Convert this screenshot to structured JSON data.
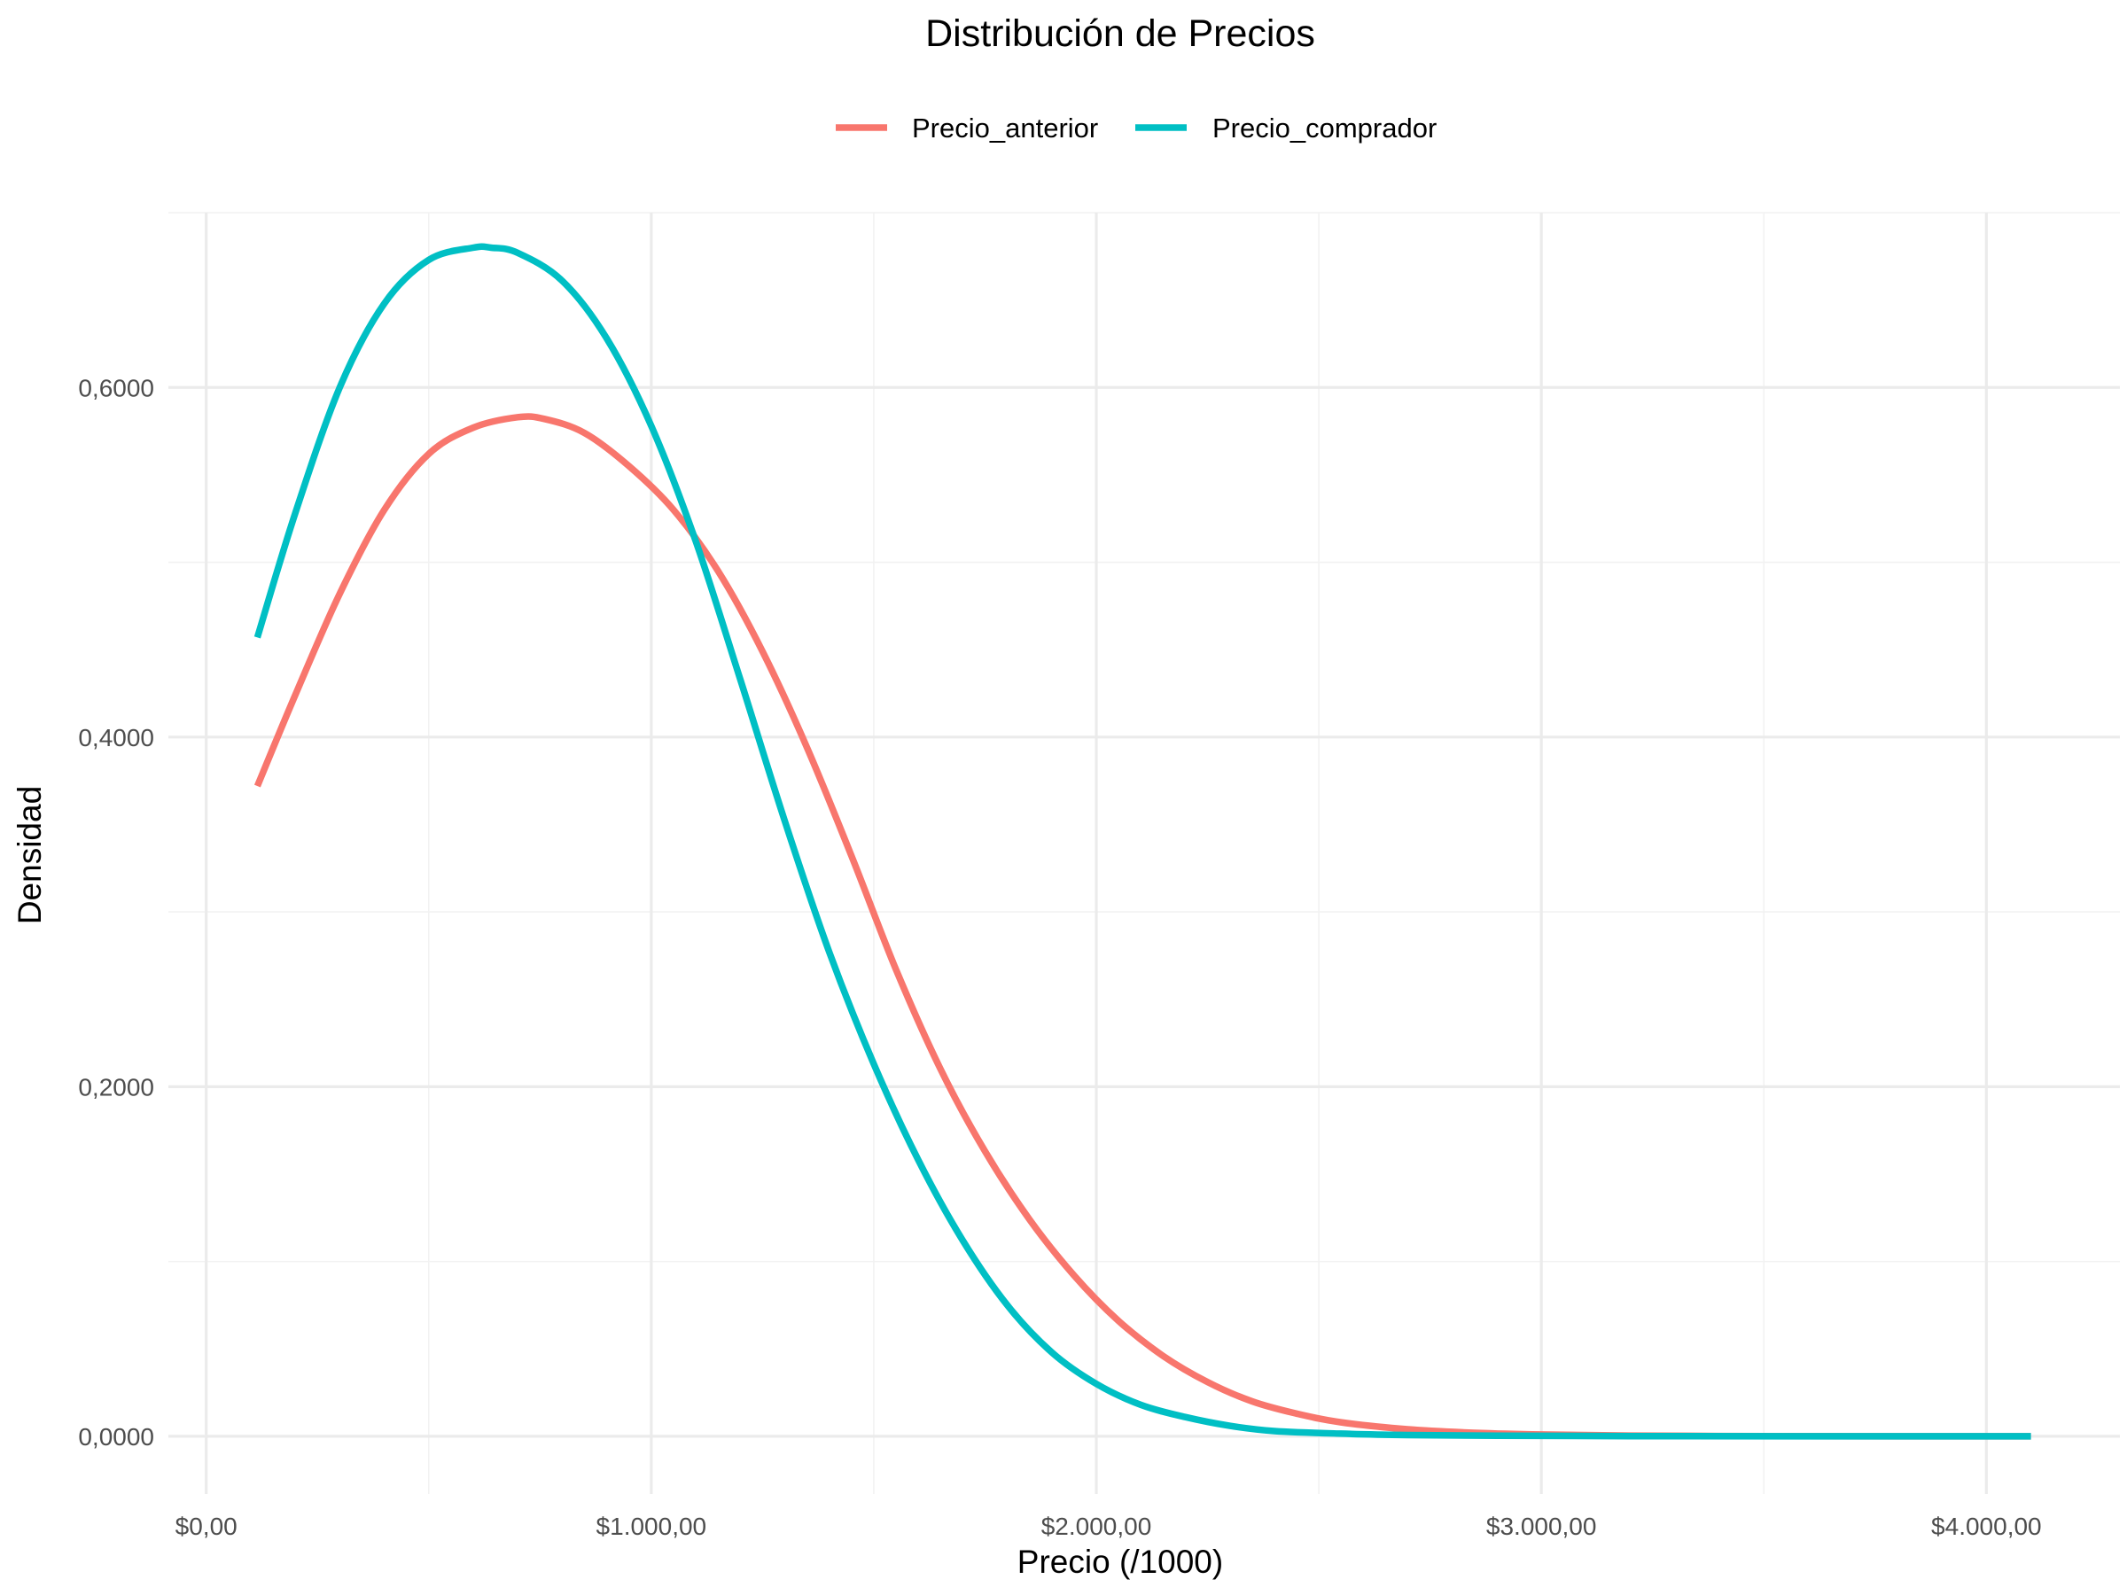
{
  "chart_data": {
    "type": "line",
    "title": "Distribución de Precios",
    "xlabel": "Precio (/1000)",
    "ylabel": "Densidad",
    "xlim": [
      -85,
      4300
    ],
    "ylim": [
      -0.033,
      0.7
    ],
    "x_ticks": [
      {
        "value": 0,
        "label": "$0,00"
      },
      {
        "value": 1000,
        "label": "$1.000,00"
      },
      {
        "value": 2000,
        "label": "$2.000,00"
      },
      {
        "value": 3000,
        "label": "$3.000,00"
      },
      {
        "value": 4000,
        "label": "$4.000,00"
      }
    ],
    "x_minor": [
      500,
      1500,
      2500,
      3500
    ],
    "y_ticks": [
      {
        "value": 0,
        "label": "0,0000"
      },
      {
        "value": 0.2,
        "label": "0,2000"
      },
      {
        "value": 0.4,
        "label": "0,4000"
      },
      {
        "value": 0.6,
        "label": "0,6000"
      }
    ],
    "y_minor": [
      0.1,
      0.3,
      0.5,
      0.7
    ],
    "grid": true,
    "legend_position": "top",
    "series": [
      {
        "name": "Precio_anterior",
        "color": "#F8766D",
        "points": [
          [
            115,
            0.372
          ],
          [
            200,
            0.424
          ],
          [
            300,
            0.482
          ],
          [
            400,
            0.53
          ],
          [
            500,
            0.562
          ],
          [
            600,
            0.577
          ],
          [
            700,
            0.583
          ],
          [
            760,
            0.582
          ],
          [
            850,
            0.574
          ],
          [
            950,
            0.555
          ],
          [
            1050,
            0.53
          ],
          [
            1150,
            0.495
          ],
          [
            1250,
            0.449
          ],
          [
            1350,
            0.394
          ],
          [
            1450,
            0.332
          ],
          [
            1550,
            0.267
          ],
          [
            1650,
            0.21
          ],
          [
            1750,
            0.163
          ],
          [
            1850,
            0.124
          ],
          [
            1950,
            0.092
          ],
          [
            2050,
            0.066
          ],
          [
            2150,
            0.046
          ],
          [
            2250,
            0.031
          ],
          [
            2350,
            0.02
          ],
          [
            2450,
            0.013
          ],
          [
            2550,
            0.008
          ],
          [
            2700,
            0.004
          ],
          [
            2850,
            0.002
          ],
          [
            3000,
            0.001
          ],
          [
            3200,
            0.0004
          ],
          [
            3500,
            0.0001
          ],
          [
            3800,
            0.0
          ],
          [
            4100,
            0.0
          ]
        ]
      },
      {
        "name": "Precio_comprador",
        "color": "#00BFC4",
        "points": [
          [
            115,
            0.457
          ],
          [
            200,
            0.528
          ],
          [
            300,
            0.6
          ],
          [
            400,
            0.648
          ],
          [
            500,
            0.673
          ],
          [
            600,
            0.68
          ],
          [
            640,
            0.68
          ],
          [
            700,
            0.677
          ],
          [
            800,
            0.661
          ],
          [
            900,
            0.628
          ],
          [
            1000,
            0.578
          ],
          [
            1100,
            0.512
          ],
          [
            1200,
            0.433
          ],
          [
            1300,
            0.352
          ],
          [
            1400,
            0.277
          ],
          [
            1500,
            0.213
          ],
          [
            1600,
            0.158
          ],
          [
            1700,
            0.112
          ],
          [
            1800,
            0.075
          ],
          [
            1900,
            0.048
          ],
          [
            2000,
            0.03
          ],
          [
            2100,
            0.018
          ],
          [
            2200,
            0.011
          ],
          [
            2300,
            0.006
          ],
          [
            2400,
            0.003
          ],
          [
            2550,
            0.0015
          ],
          [
            2700,
            0.0007
          ],
          [
            2900,
            0.0003
          ],
          [
            3200,
            0.0001
          ],
          [
            3600,
            0.0
          ],
          [
            4100,
            0.0
          ]
        ]
      }
    ]
  }
}
